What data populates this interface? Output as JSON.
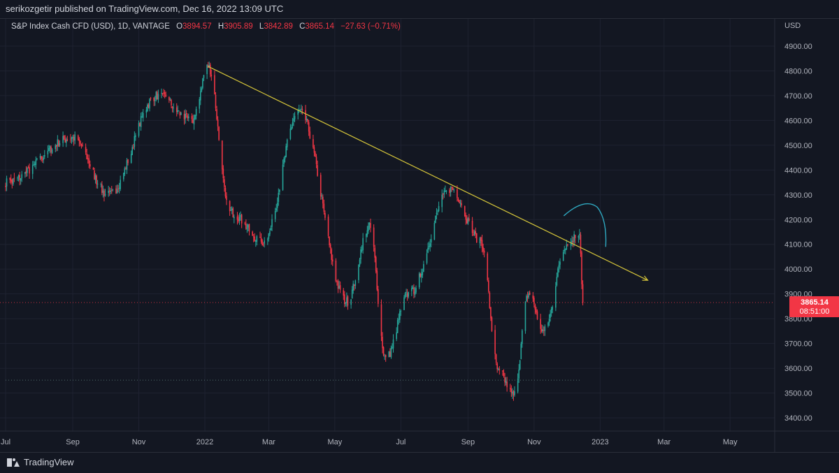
{
  "header": {
    "publisher_text": "serikozgetir published on TradingView.com, Dec 16, 2022 13:09 UTC"
  },
  "legend": {
    "symbol": "S&P Index Cash CFD (USD), 1D, VANTAGE",
    "open_label": "O",
    "open": "3894.57",
    "high_label": "H",
    "high": "3905.89",
    "low_label": "L",
    "low": "3842.89",
    "close_label": "C",
    "close": "3865.14",
    "change": "−27.63 (−0.71%)"
  },
  "footer": {
    "brand": "TradingView"
  },
  "colors": {
    "up": "#26a69a",
    "down": "#f23645",
    "trendline": "#d4c43a",
    "arc": "#2fa8c0",
    "grid": "#1e2230",
    "text": "#b2b5be"
  },
  "chart_data": {
    "type": "candlestick",
    "currency_label": "USD",
    "y_ticks": [
      "4900.00",
      "4800.00",
      "4700.00",
      "4600.00",
      "4500.00",
      "4400.00",
      "4300.00",
      "4200.00",
      "4100.00",
      "4000.00",
      "3900.00",
      "3800.00",
      "3700.00",
      "3600.00",
      "3500.00",
      "3400.00"
    ],
    "ylim": [
      3340,
      4990
    ],
    "x_ticks": [
      "Jul",
      "Sep",
      "Nov",
      "2022",
      "Mar",
      "May",
      "Jul",
      "Sep",
      "Nov",
      "2023",
      "Mar",
      "May"
    ],
    "price_label": {
      "value": "3865.14",
      "countdown": "08:51:00"
    },
    "key_points": [
      {
        "date": "2021-07-01",
        "price": 4350
      },
      {
        "date": "2021-09-01",
        "price": 4530
      },
      {
        "date": "2021-10-04",
        "price": 4300
      },
      {
        "date": "2021-11-18",
        "price": 4700
      },
      {
        "date": "2021-12-20",
        "price": 4600
      },
      {
        "date": "2022-01-04",
        "price": 4818
      },
      {
        "date": "2022-01-24",
        "price": 4230
      },
      {
        "date": "2022-02-24",
        "price": 4110
      },
      {
        "date": "2022-03-29",
        "price": 4637
      },
      {
        "date": "2022-05-12",
        "price": 3870
      },
      {
        "date": "2022-06-02",
        "price": 4170
      },
      {
        "date": "2022-06-17",
        "price": 3640
      },
      {
        "date": "2022-07-08",
        "price": 3900
      },
      {
        "date": "2022-08-16",
        "price": 4325
      },
      {
        "date": "2022-09-12",
        "price": 4120
      },
      {
        "date": "2022-09-30",
        "price": 3580
      },
      {
        "date": "2022-10-13",
        "price": 3491
      },
      {
        "date": "2022-10-27",
        "price": 3900
      },
      {
        "date": "2022-11-10",
        "price": 3750
      },
      {
        "date": "2022-12-01",
        "price": 4100
      },
      {
        "date": "2022-12-13",
        "price": 4145
      },
      {
        "date": "2022-12-16",
        "price": 3865
      }
    ],
    "annotations": [
      {
        "type": "trendline",
        "from": {
          "date": "2022-01-04",
          "price": 4818
        },
        "to": {
          "date": "2023-02-14",
          "price": 3955
        }
      },
      {
        "type": "horizontal",
        "style": "dotted",
        "price": 3552
      },
      {
        "type": "horizontal",
        "style": "dotted",
        "price": 3865.14
      },
      {
        "type": "arc",
        "note": "projected bounce"
      }
    ]
  }
}
